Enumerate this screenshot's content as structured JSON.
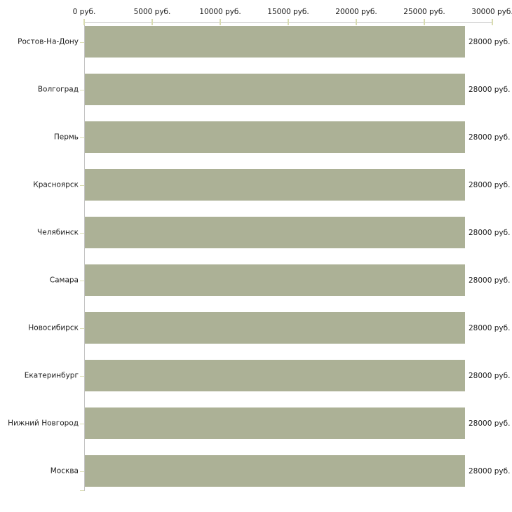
{
  "chart_data": {
    "type": "bar",
    "orientation": "horizontal",
    "title": "",
    "xlabel": "",
    "ylabel": "",
    "xlim": [
      0,
      30000
    ],
    "grid": false,
    "legend": "none",
    "x_ticks": [
      0,
      5000,
      10000,
      15000,
      20000,
      25000,
      30000
    ],
    "x_tick_labels": [
      "0 руб.",
      "5000 руб.",
      "10000 руб.",
      "15000 руб.",
      "20000 руб.",
      "25000 руб.",
      "30000 руб."
    ],
    "categories": [
      "Ростов-На-Дону",
      "Волгоград",
      "Пермь",
      "Красноярск",
      "Челябинск",
      "Самара",
      "Новосибирск",
      "Екатеринбург",
      "Нижний Новгород",
      "Москва"
    ],
    "values": [
      28000,
      28000,
      28000,
      28000,
      28000,
      28000,
      28000,
      28000,
      28000,
      28000
    ],
    "value_labels": [
      "28000 руб.",
      "28000 руб.",
      "28000 руб.",
      "28000 руб.",
      "28000 руб.",
      "28000 руб.",
      "28000 руб.",
      "28000 руб.",
      "28000 руб.",
      "28000 руб."
    ],
    "colors": {
      "bar_fill": "#acb196",
      "axis_line": "#c3c3c3",
      "tick_mark": "#d9dcb1",
      "text": "#1c1c1c",
      "background": "#ffffff"
    }
  }
}
